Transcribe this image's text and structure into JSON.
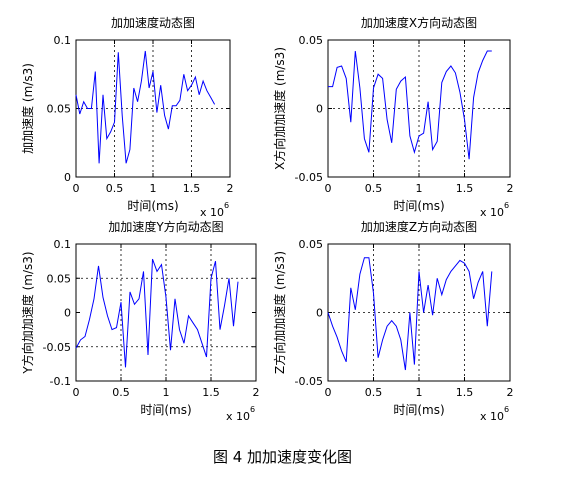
{
  "caption": "图 4  加加速度变化图",
  "chart_data": [
    {
      "type": "line",
      "title": "加加速度动态图",
      "xlabel": "时间(ms)",
      "ylabel": "加加速度 (m/s3)",
      "x_multiplier": "x 10",
      "x_exponent": "6",
      "xlim": [
        0,
        2
      ],
      "ylim": [
        0,
        0.1
      ],
      "xticks": [
        0,
        0.5,
        1,
        1.5,
        2
      ],
      "yticks": [
        0,
        0.05,
        0.1
      ],
      "xtick_labels": [
        "0",
        "0.5",
        "1",
        "1.5",
        "2"
      ],
      "ytick_labels": [
        "0",
        "0.05",
        "0.1"
      ],
      "grid_x": [
        0.5,
        1,
        1.5
      ],
      "grid_y": [
        0.05
      ],
      "line_color": "#0000ff",
      "series": [
        {
          "x": [
            0,
            0.05,
            0.1,
            0.15,
            0.2,
            0.25,
            0.3,
            0.35,
            0.4,
            0.45,
            0.5,
            0.55,
            0.6,
            0.65,
            0.7,
            0.75,
            0.8,
            0.85,
            0.9,
            0.95,
            1.0,
            1.05,
            1.1,
            1.15,
            1.2,
            1.25,
            1.3,
            1.35,
            1.4,
            1.45,
            1.5,
            1.55,
            1.6,
            1.65,
            1.7,
            1.75,
            1.8
          ],
          "values": [
            0.06,
            0.046,
            0.055,
            0.05,
            0.05,
            0.077,
            0.01,
            0.06,
            0.028,
            0.033,
            0.04,
            0.091,
            0.045,
            0.01,
            0.02,
            0.065,
            0.055,
            0.07,
            0.092,
            0.065,
            0.077,
            0.047,
            0.067,
            0.045,
            0.035,
            0.052,
            0.052,
            0.056,
            0.075,
            0.063,
            0.067,
            0.073,
            0.06,
            0.07,
            0.063,
            0.058,
            0.053
          ]
        }
      ]
    },
    {
      "type": "line",
      "title": "加加速度X方向动态图",
      "xlabel": "时间(ms)",
      "ylabel": "X方向加加速度 (m/s3)",
      "x_multiplier": "x 10",
      "x_exponent": "6",
      "xlim": [
        0,
        2
      ],
      "ylim": [
        -0.05,
        0.05
      ],
      "xticks": [
        0,
        0.5,
        1,
        1.5,
        2
      ],
      "yticks": [
        -0.05,
        0,
        0.05
      ],
      "xtick_labels": [
        "0",
        "0.5",
        "1",
        "1.5",
        "2"
      ],
      "ytick_labels": [
        "-0.05",
        "0",
        "0.05"
      ],
      "grid_x": [
        0.5,
        1,
        1.5
      ],
      "grid_y": [
        0
      ],
      "line_color": "#0000ff",
      "series": [
        {
          "x": [
            0,
            0.05,
            0.1,
            0.15,
            0.2,
            0.25,
            0.3,
            0.35,
            0.4,
            0.45,
            0.5,
            0.55,
            0.6,
            0.65,
            0.7,
            0.75,
            0.8,
            0.85,
            0.9,
            0.95,
            1.0,
            1.05,
            1.1,
            1.15,
            1.2,
            1.25,
            1.3,
            1.35,
            1.4,
            1.45,
            1.5,
            1.55,
            1.6,
            1.65,
            1.7,
            1.75,
            1.8
          ],
          "values": [
            0.016,
            0.016,
            0.03,
            0.031,
            0.022,
            -0.01,
            0.042,
            0.015,
            -0.022,
            -0.032,
            0.015,
            0.025,
            0.022,
            -0.008,
            -0.025,
            0.014,
            0.02,
            0.023,
            -0.02,
            -0.032,
            -0.02,
            -0.018,
            0.005,
            -0.03,
            -0.024,
            0.019,
            0.027,
            0.031,
            0.026,
            0.012,
            -0.008,
            -0.037,
            0.008,
            0.026,
            0.035,
            0.042,
            0.042
          ]
        }
      ]
    },
    {
      "type": "line",
      "title": "加加速度Y方向动态图",
      "xlabel": "时间(ms)",
      "ylabel": "Y方向加加速度 (m/s3)",
      "x_multiplier": "x 10",
      "x_exponent": "6",
      "xlim": [
        0,
        2
      ],
      "ylim": [
        -0.1,
        0.1
      ],
      "xticks": [
        0,
        0.5,
        1,
        1.5,
        2
      ],
      "yticks": [
        -0.1,
        -0.05,
        0,
        0.05,
        0.1
      ],
      "xtick_labels": [
        "0",
        "0.5",
        "1",
        "1.5",
        "2"
      ],
      "ytick_labels": [
        "-0.1",
        "-0.05",
        "0",
        "0.05",
        "0.1"
      ],
      "grid_x": [
        0.5,
        1,
        1.5
      ],
      "grid_y": [
        -0.05,
        0.05
      ],
      "line_color": "#0000ff",
      "series": [
        {
          "x": [
            0,
            0.05,
            0.1,
            0.15,
            0.2,
            0.25,
            0.3,
            0.35,
            0.4,
            0.45,
            0.5,
            0.55,
            0.6,
            0.65,
            0.7,
            0.75,
            0.8,
            0.85,
            0.9,
            0.95,
            1.0,
            1.05,
            1.1,
            1.15,
            1.2,
            1.25,
            1.3,
            1.35,
            1.4,
            1.45,
            1.5,
            1.55,
            1.6,
            1.65,
            1.7,
            1.75,
            1.8
          ],
          "values": [
            -0.052,
            -0.04,
            -0.035,
            -0.01,
            0.02,
            0.068,
            0.022,
            -0.005,
            -0.025,
            -0.022,
            0.015,
            -0.08,
            0.03,
            0.012,
            0.02,
            0.06,
            -0.062,
            0.078,
            0.06,
            0.07,
            0.022,
            -0.055,
            0.02,
            -0.025,
            -0.045,
            -0.005,
            -0.015,
            -0.025,
            -0.045,
            -0.065,
            0.05,
            0.075,
            -0.025,
            0.01,
            0.05,
            -0.02,
            0.045
          ]
        }
      ]
    },
    {
      "type": "line",
      "title": "加加速度Z方向动态图",
      "xlabel": "时间(ms)",
      "ylabel": "Z方向加加速度 (m/s3)",
      "x_multiplier": "x 10",
      "x_exponent": "6",
      "xlim": [
        0,
        2
      ],
      "ylim": [
        -0.05,
        0.05
      ],
      "xticks": [
        0,
        0.5,
        1,
        1.5,
        2
      ],
      "yticks": [
        -0.05,
        0,
        0.05
      ],
      "xtick_labels": [
        "0",
        "0.5",
        "1",
        "1.5",
        "2"
      ],
      "ytick_labels": [
        "-0.05",
        "0",
        "0.05"
      ],
      "grid_x": [
        0.5,
        1,
        1.5
      ],
      "grid_y": [
        0
      ],
      "line_color": "#0000ff",
      "series": [
        {
          "x": [
            0,
            0.05,
            0.1,
            0.15,
            0.2,
            0.25,
            0.3,
            0.35,
            0.4,
            0.45,
            0.5,
            0.55,
            0.6,
            0.65,
            0.7,
            0.75,
            0.8,
            0.85,
            0.9,
            0.95,
            1.0,
            1.05,
            1.1,
            1.15,
            1.2,
            1.25,
            1.3,
            1.35,
            1.4,
            1.45,
            1.5,
            1.55,
            1.6,
            1.65,
            1.7,
            1.75,
            1.8
          ],
          "values": [
            0,
            -0.01,
            -0.018,
            -0.028,
            -0.036,
            0.018,
            0.002,
            0.028,
            0.04,
            0.04,
            0.014,
            -0.033,
            -0.02,
            -0.01,
            -0.006,
            -0.01,
            -0.02,
            -0.042,
            0.0,
            -0.038,
            0.03,
            0.0,
            0.02,
            -0.002,
            0.025,
            0.013,
            0.024,
            0.03,
            0.034,
            0.038,
            0.036,
            0.03,
            0.01,
            0.022,
            0.03,
            -0.01,
            0.03
          ]
        }
      ]
    }
  ]
}
